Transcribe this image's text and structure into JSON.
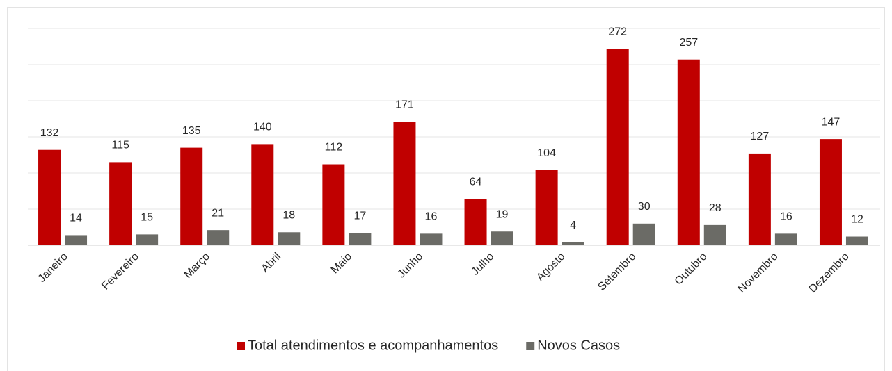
{
  "chart_data": {
    "type": "bar",
    "categories": [
      "Janeiro",
      "Fevereiro",
      "Março",
      "Abril",
      "Maio",
      "Junho",
      "Julho",
      "Agosto",
      "Setembro",
      "Outubro",
      "Novembro",
      "Dezembro"
    ],
    "series": [
      {
        "name": "Total atendimentos e acompanhamentos",
        "color": "#c00000",
        "values": [
          132,
          115,
          135,
          140,
          112,
          171,
          64,
          104,
          272,
          257,
          127,
          147
        ]
      },
      {
        "name": "Novos Casos",
        "color": "#6b6b66",
        "values": [
          14,
          15,
          21,
          18,
          17,
          16,
          19,
          4,
          30,
          28,
          16,
          12
        ]
      }
    ],
    "ylim": [
      0,
      300
    ],
    "yticks": [
      0,
      50,
      100,
      150,
      200,
      250,
      300
    ],
    "grid": true,
    "legend": "bottom"
  }
}
